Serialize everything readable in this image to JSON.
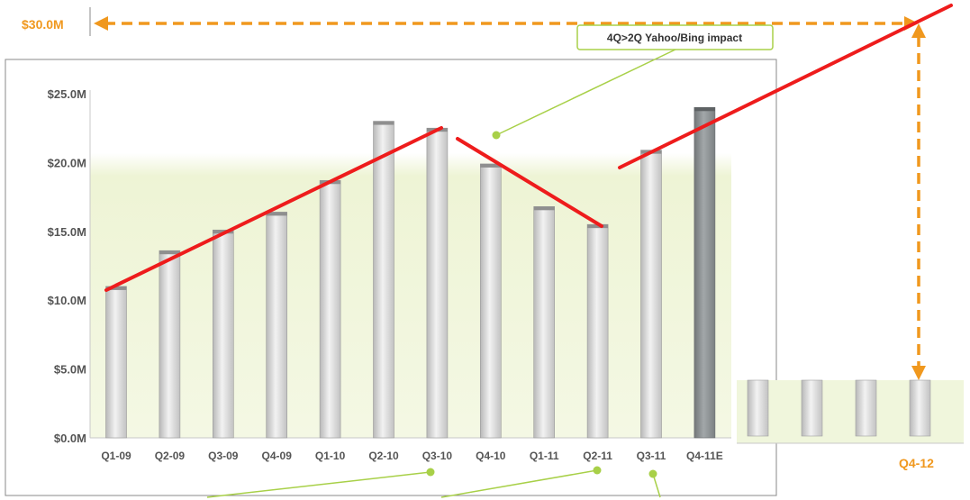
{
  "chart_data": {
    "type": "bar",
    "categories": [
      "Q1-09",
      "Q2-09",
      "Q3-09",
      "Q4-09",
      "Q1-10",
      "Q2-10",
      "Q3-10",
      "Q4-10",
      "Q1-11",
      "Q2-11",
      "Q3-11",
      "Q4-11E"
    ],
    "values": [
      11.0,
      13.6,
      15.1,
      16.4,
      18.7,
      23.0,
      22.5,
      19.9,
      16.8,
      15.5,
      20.9,
      24.0
    ],
    "estimate_category": "Q4-11E",
    "yticks": [
      "$0.0M",
      "$5.0M",
      "$10.0M",
      "$15.0M",
      "$20.0M",
      "$25.0M"
    ],
    "ylim": [
      0,
      25
    ],
    "target_label": "$30.0M",
    "target_quarter_label": "Q4-12",
    "callout": "4Q>2Q Yahoo/Bing impact",
    "colors": {
      "bar": "#d0d0d0",
      "bar_estimate": "#8c9193",
      "trend": "#ee1c1c",
      "target": "#f0981e",
      "callout": "#a8d048",
      "band": "#eef4d8"
    }
  }
}
